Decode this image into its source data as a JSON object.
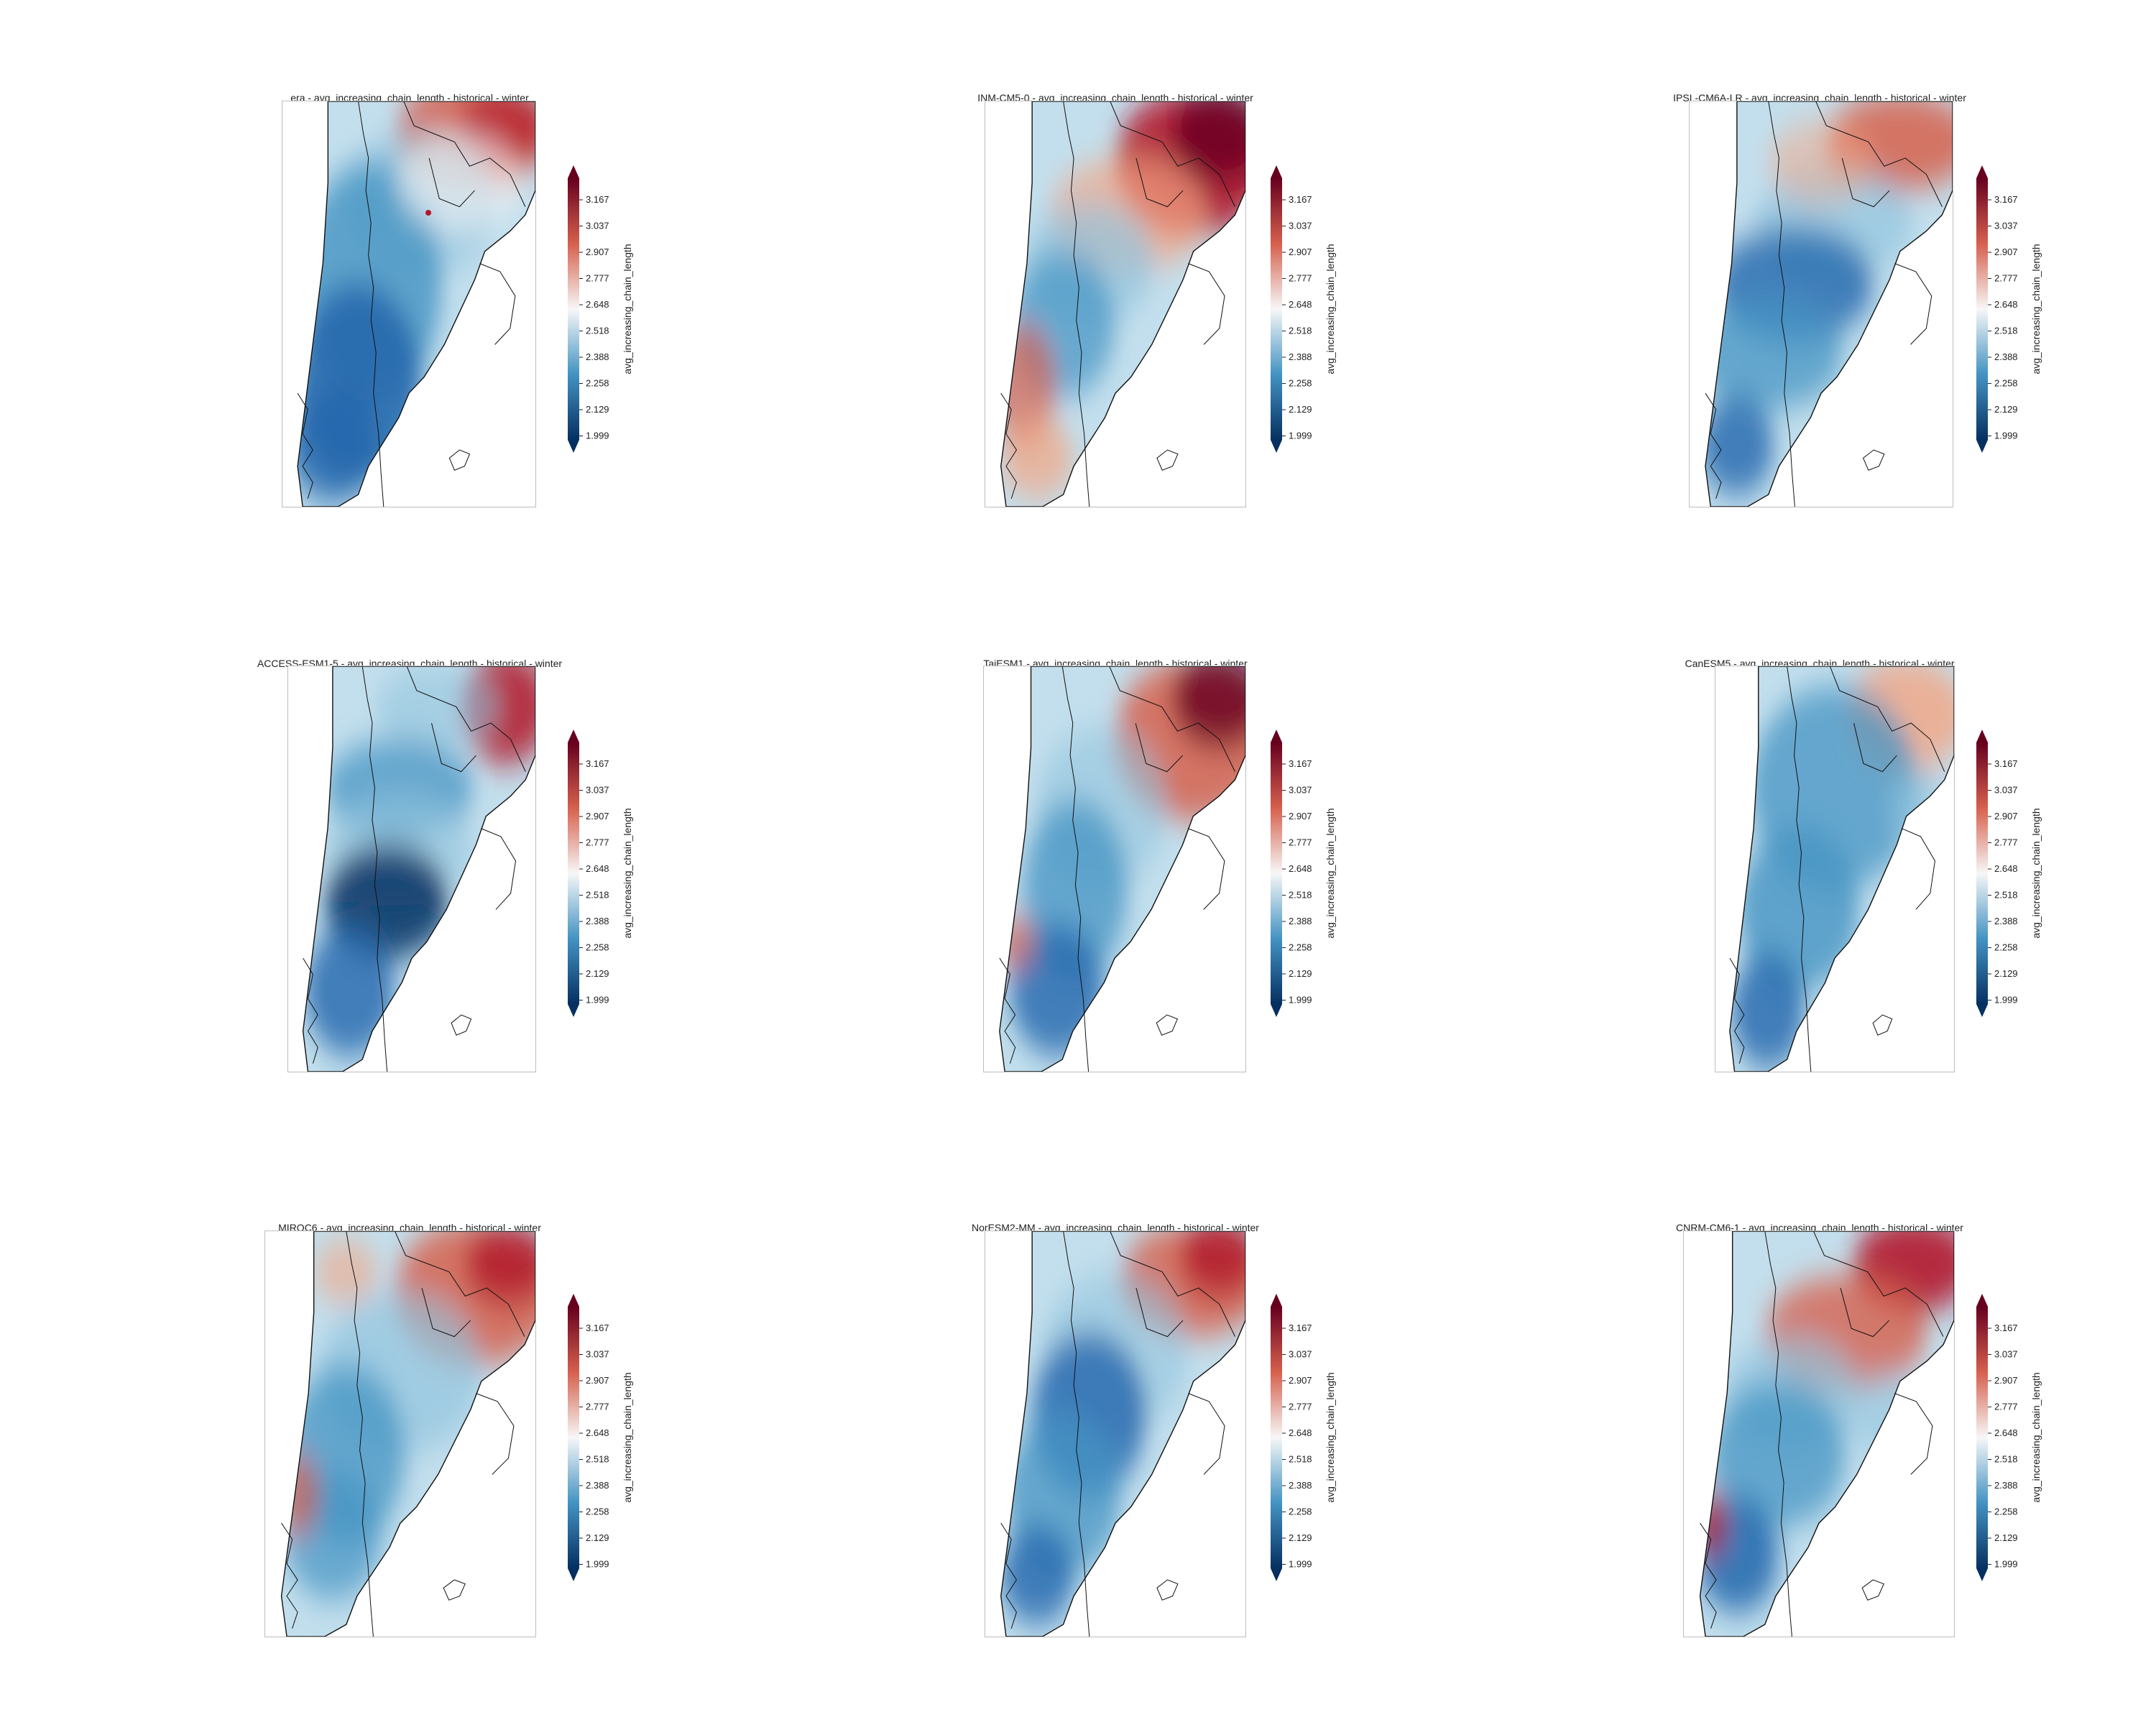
{
  "colorbar": {
    "label": "avg_increasing_chain_length",
    "ticks": [
      "3.167",
      "3.037",
      "2.907",
      "2.777",
      "2.648",
      "2.518",
      "2.388",
      "2.258",
      "2.129",
      "1.999"
    ],
    "colors": {
      "top": "#67001f",
      "upper": "#d6604d",
      "mid": "#f7f7f7",
      "lower": "#4393c3",
      "bottom": "#053061"
    }
  },
  "panels": [
    {
      "title": "era - avg_increasing_chain_length - historical - winter",
      "pattern": "era"
    },
    {
      "title": "INM-CM5-0 - avg_increasing_chain_length - historical - winter",
      "pattern": "inm"
    },
    {
      "title": "IPSL-CM6A-LR - avg_increasing_chain_length - historical - winter",
      "pattern": "ipsl"
    },
    {
      "title": "ACCESS-ESM1-5 - avg_increasing_chain_length - historical - winter",
      "pattern": "access"
    },
    {
      "title": "TaiESM1 - avg_increasing_chain_length - historical - winter",
      "pattern": "tai"
    },
    {
      "title": "CanESM5 - avg_increasing_chain_length - historical - winter",
      "pattern": "can"
    },
    {
      "title": "MIROC6 - avg_increasing_chain_length - historical - winter",
      "pattern": "miroc"
    },
    {
      "title": "NorESM2-MM - avg_increasing_chain_length - historical - winter",
      "pattern": "nor"
    },
    {
      "title": "CNRM-CM6-1 - avg_increasing_chain_length - historical - winter",
      "pattern": "cnrm"
    }
  ]
}
